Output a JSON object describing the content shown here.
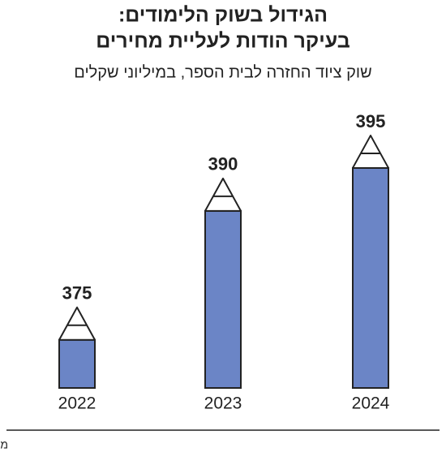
{
  "chart_data": {
    "type": "bar",
    "title": [
      "הגידול בשוק הלימודים:",
      "בעיקר הודות לעליית מחירים"
    ],
    "subtitle": "שוק ציוד החזרה לבית הספר, במיליוני שקלים",
    "categories": [
      "2022",
      "2023",
      "2024"
    ],
    "values": [
      375,
      390,
      395
    ],
    "color": "#6b85c6",
    "ylim": [
      369.4,
      400
    ],
    "source": "מקור: BDI"
  }
}
